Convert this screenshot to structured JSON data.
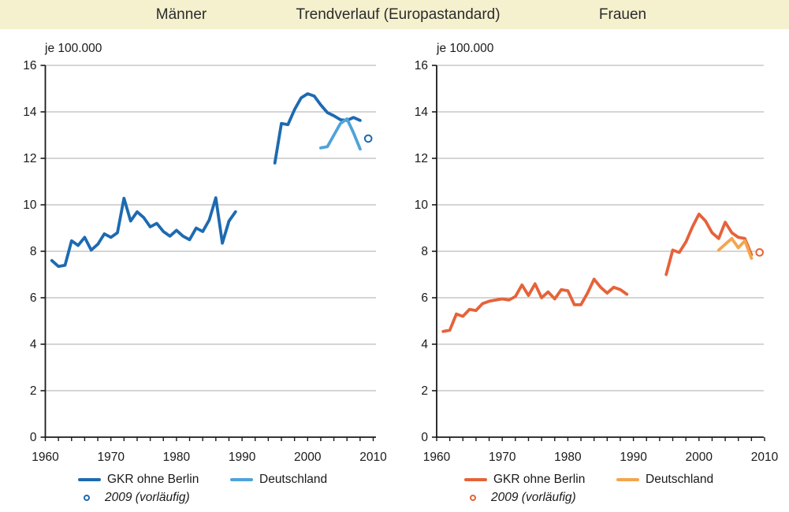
{
  "header": {
    "left_title": "Männer",
    "center_title": "Trendverlauf (Europastandard)",
    "right_title": "Frauen"
  },
  "colors": {
    "header_bg": "#f5f1cf",
    "grid": "#ababab",
    "axis": "#1a1a1a",
    "text": "#1a1a1a",
    "men_gkr": "#1d6ab1",
    "men_de": "#4fa3d9",
    "women_gkr": "#e66239",
    "women_de": "#f5a54b"
  },
  "chart_data": [
    {
      "type": "line",
      "panel": "men",
      "title": "Männer",
      "unit_label": "je 100.000",
      "xlim": [
        1960,
        2010
      ],
      "ylim": [
        0,
        16
      ],
      "xticks": [
        1960,
        1970,
        1980,
        1990,
        2000,
        2010
      ],
      "yticks": [
        0,
        2,
        4,
        6,
        8,
        10,
        12,
        14,
        16
      ],
      "minor_xtick_step": 2,
      "grid": "horizontal",
      "legend": {
        "series1": "GKR ohne Berlin",
        "series2": "Deutschland",
        "provisional": "2009 (vorläufig)"
      },
      "series": [
        {
          "name": "GKR ohne Berlin",
          "color_key": "men_gkr",
          "segments": [
            {
              "start_year": 1961,
              "values": [
                7.6,
                7.35,
                7.4,
                8.45,
                8.25,
                8.6,
                8.05,
                8.3,
                8.75,
                8.6,
                8.8,
                10.28,
                9.3,
                9.7,
                9.45,
                9.05,
                9.2,
                8.85,
                8.65,
                8.9,
                8.65,
                8.5,
                9.0,
                8.85,
                9.35,
                10.3,
                8.35,
                9.3,
                9.7
              ]
            },
            {
              "start_year": 1995,
              "values": [
                11.8,
                13.5,
                13.45,
                14.1,
                14.6,
                14.78,
                14.68,
                14.3,
                13.97,
                13.83,
                13.66,
                13.63,
                13.76,
                13.63
              ]
            }
          ]
        },
        {
          "name": "Deutschland",
          "color_key": "men_de",
          "segments": [
            {
              "start_year": 2002,
              "values": [
                12.45,
                12.5,
                13.0,
                13.5,
                13.7,
                13.1,
                12.4
              ]
            }
          ]
        }
      ],
      "provisional_point": {
        "year": 2009,
        "value": 12.85,
        "color_key": "men_gkr"
      }
    },
    {
      "type": "line",
      "panel": "women",
      "title": "Frauen",
      "unit_label": "je 100.000",
      "xlim": [
        1960,
        2010
      ],
      "ylim": [
        0,
        16
      ],
      "xticks": [
        1960,
        1970,
        1980,
        1990,
        2000,
        2010
      ],
      "yticks": [
        0,
        2,
        4,
        6,
        8,
        10,
        12,
        14,
        16
      ],
      "minor_xtick_step": 2,
      "grid": "horizontal",
      "legend": {
        "series1": "GKR ohne Berlin",
        "series2": "Deutschland",
        "provisional": "2009 (vorläufig)"
      },
      "series": [
        {
          "name": "GKR ohne Berlin",
          "color_key": "women_gkr",
          "segments": [
            {
              "start_year": 1961,
              "values": [
                4.55,
                4.6,
                5.3,
                5.2,
                5.5,
                5.45,
                5.75,
                5.85,
                5.9,
                5.95,
                5.9,
                6.05,
                6.55,
                6.1,
                6.6,
                6.0,
                6.25,
                5.95,
                6.35,
                6.3,
                5.7,
                5.7,
                6.2,
                6.8,
                6.45,
                6.2,
                6.45,
                6.35,
                6.15
              ]
            },
            {
              "start_year": 1995,
              "values": [
                7.0,
                8.05,
                7.95,
                8.4,
                9.05,
                9.6,
                9.3,
                8.8,
                8.55,
                9.25,
                8.8,
                8.6,
                8.55,
                7.85
              ]
            }
          ]
        },
        {
          "name": "Deutschland",
          "color_key": "women_de",
          "segments": [
            {
              "start_year": 2003,
              "values": [
                8.05,
                8.3,
                8.55,
                8.15,
                8.45,
                7.7
              ]
            }
          ]
        }
      ],
      "provisional_point": {
        "year": 2009,
        "value": 7.95,
        "color_key": "women_gkr"
      }
    }
  ]
}
